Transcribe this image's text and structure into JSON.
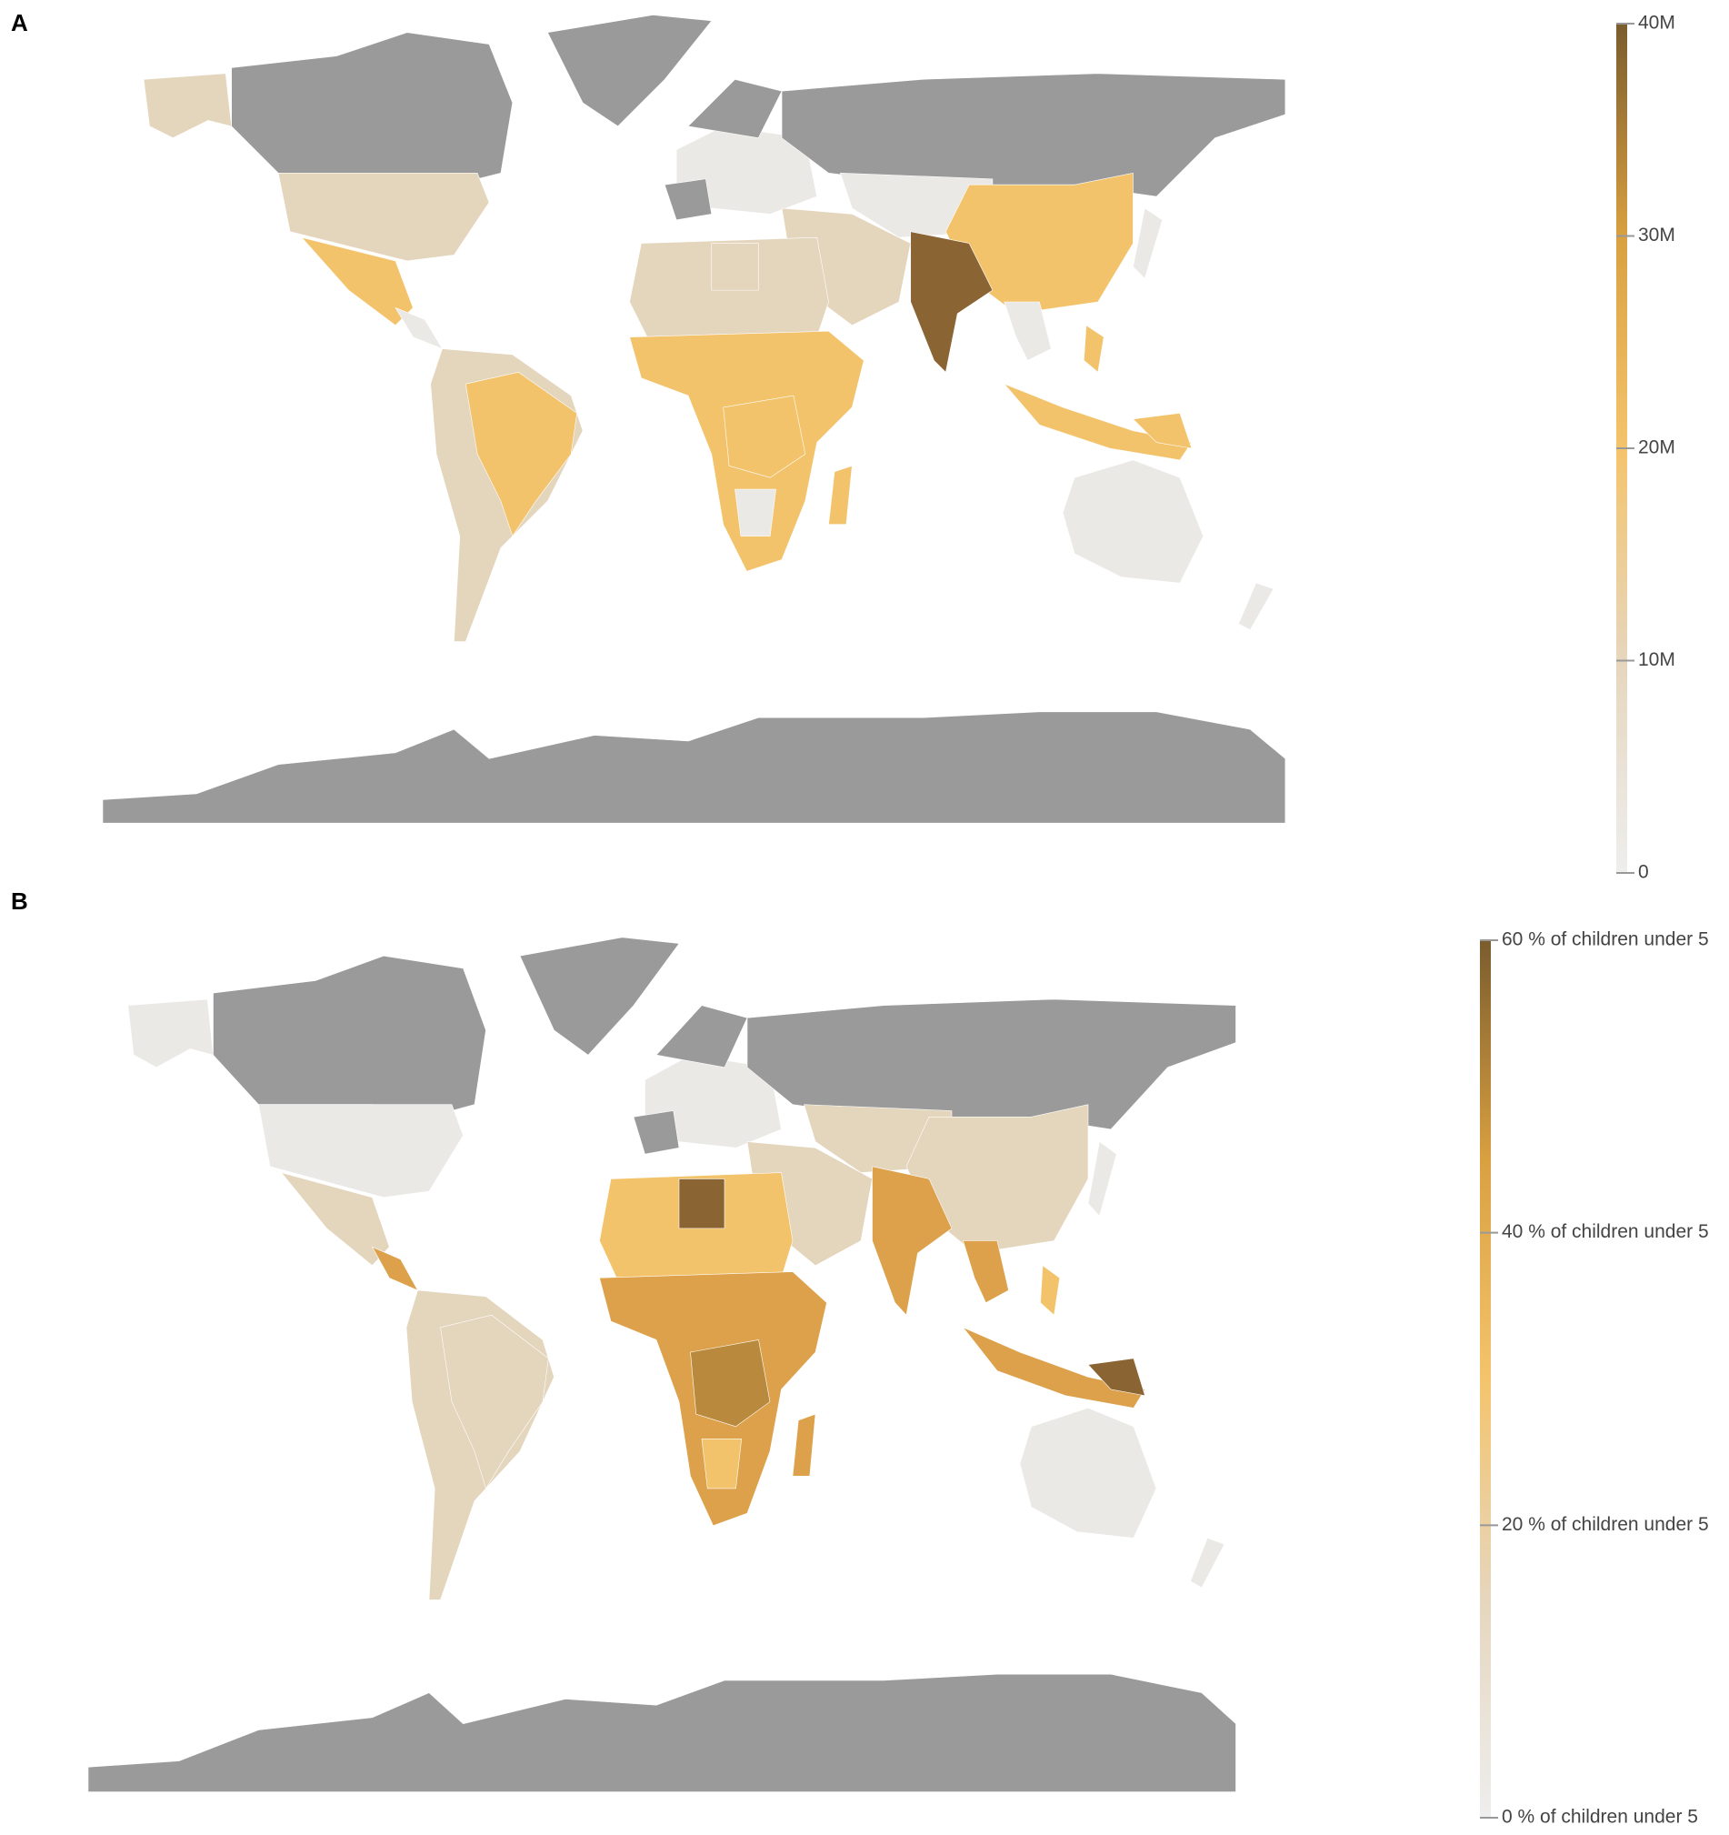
{
  "figure": {
    "panels": [
      {
        "label": "A",
        "legend": {
          "lim": [
            0,
            40000000
          ],
          "ticks": [
            0,
            {
              "value": 10000000,
              "label": "10M"
            },
            {
              "value": 20000000,
              "label": "20M"
            },
            {
              "value": 30000000,
              "label": "30M"
            },
            {
              "value": 40000000,
              "label": "40M"
            }
          ],
          "colors": [
            "#eeeeee",
            "#e6d6bd",
            "#f4c46c",
            "#d9a040",
            "#7a5c2e"
          ]
        }
      },
      {
        "label": "B",
        "legend": {
          "lim": [
            0,
            60
          ],
          "ticks": [
            {
              "value": 0,
              "label": "0 % of children under 5"
            },
            {
              "value": 20,
              "label": "20 % of children under 5"
            },
            {
              "value": 40,
              "label": "40 % of children under 5"
            },
            {
              "value": 60,
              "label": "60 % of children under 5"
            }
          ],
          "colors": [
            "#eeeeee",
            "#e6d6bd",
            "#f4c46c",
            "#d9a040",
            "#7a5c2e"
          ]
        }
      }
    ]
  }
}
